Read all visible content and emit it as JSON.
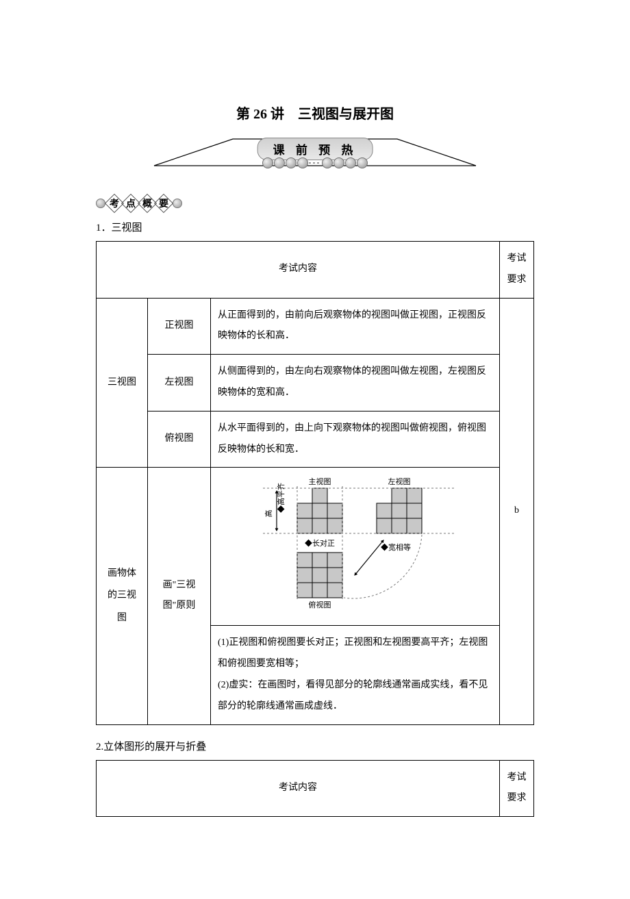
{
  "title": "第 26 讲　三视图与展开图",
  "banner_label": "课 前 预 热",
  "section_tag": [
    "考",
    "点",
    "概",
    "要"
  ],
  "heading1": "1．三视图",
  "heading2": "2.立体图形的展开与折叠",
  "table_headers": {
    "content": "考试内容",
    "requirement": "考试\n要求"
  },
  "requirement_value": "b",
  "rows": {
    "group1_label": "三视图",
    "r1_label": "正视图",
    "r1_text": "从正面得到的，由前向后观察物体的视图叫做正视图，正视图反映物体的长和高．",
    "r2_label": "左视图",
    "r2_text": "从侧面得到的，由左向右观察物体的视图叫做左视图，左视图反映物体的宽和高．",
    "r3_label": "俯视图",
    "r3_text": "从水平面得到的，由上向下观察物体的视图叫做俯视图，俯视图反映物体的长和宽．",
    "group2_label": "画物体的三视图",
    "r4_label": "画\"三视图\"原则",
    "r4_text": "(1)正视图和俯视图要长对正；正视图和左视图要高平齐；左视图和俯视图要宽相等；\n(2)虚实：在画图时，看得见部分的轮廓线通常画成实线，看不见部分的轮廓线通常画成虚线．"
  },
  "diagram": {
    "labels": {
      "front": "主视图",
      "left": "左视图",
      "top": "俯视图",
      "high_align": "◆高平齐",
      "long_align": "◆长对正",
      "wide_equal": "◆宽相等",
      "height_axis": "高"
    },
    "cell_fill": "#c8c8c8",
    "cell_stroke": "#000000",
    "dash_color": "#777777",
    "font_size": 11
  }
}
